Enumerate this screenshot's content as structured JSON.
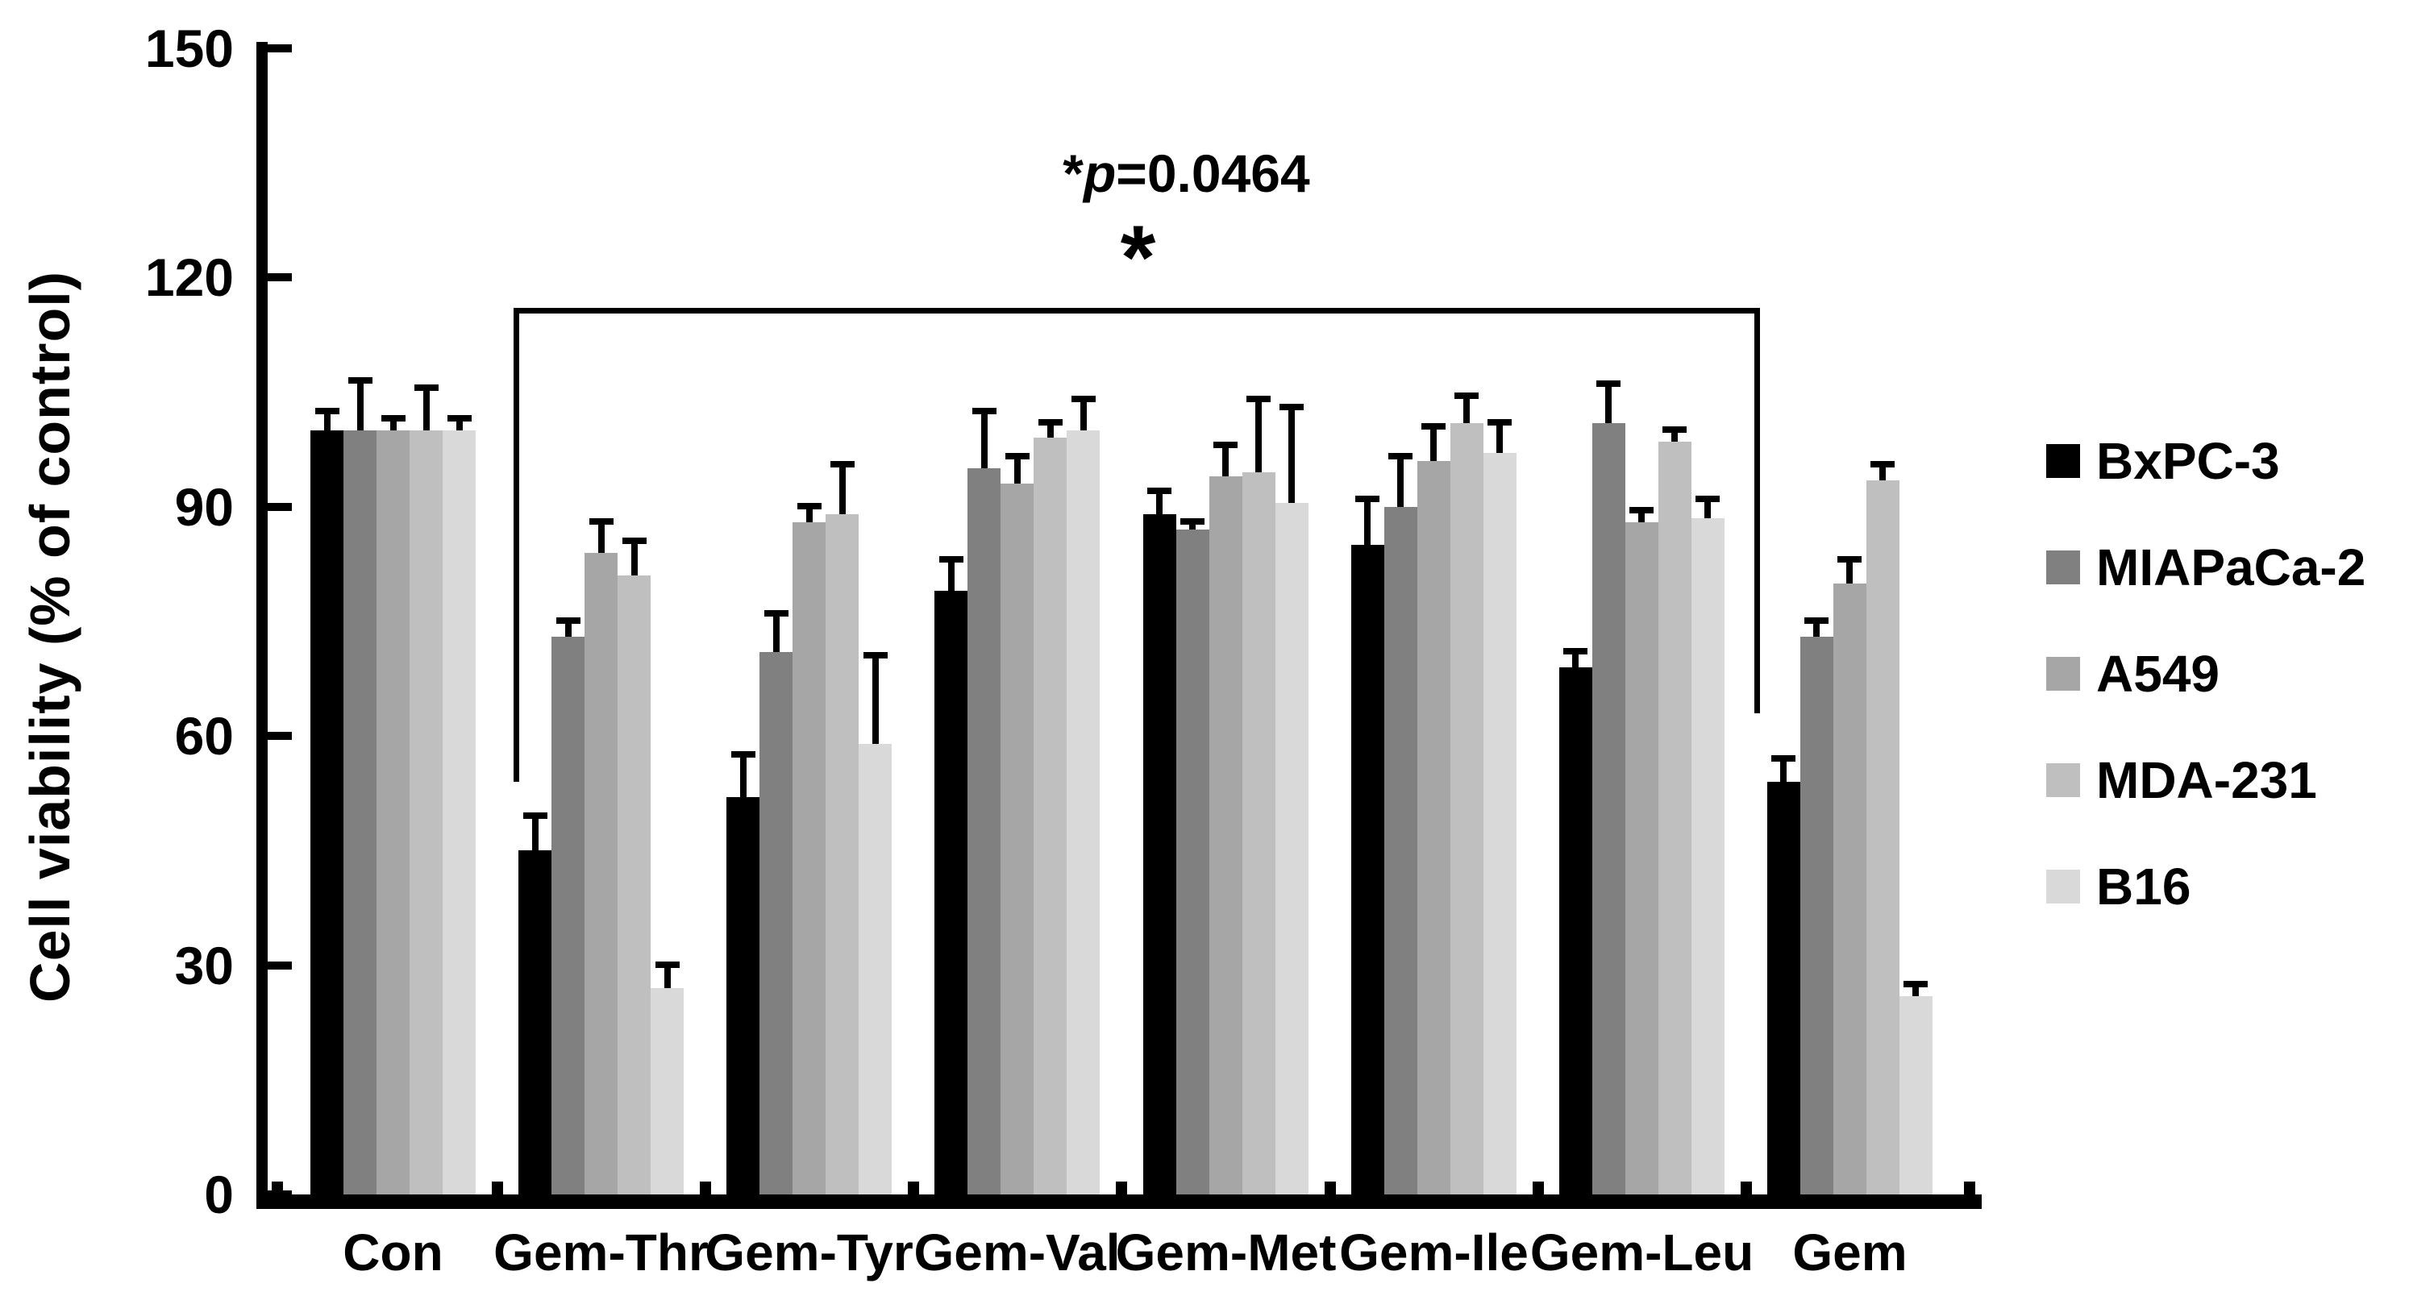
{
  "figure": {
    "background": "#ffffff"
  },
  "annotation": {
    "star": "*",
    "p_symbol": "p",
    "rest": "=0.0464"
  },
  "chart_data": {
    "type": "bar",
    "title": "",
    "xlabel": "",
    "ylabel": "Cell viability (% of control)",
    "ylim": [
      0,
      150
    ],
    "yticks": [
      0,
      30,
      60,
      90,
      120,
      150
    ],
    "grid": false,
    "legend_position": "right",
    "bar_color_scheme": "grayscale",
    "categories": [
      "Con",
      "Gem-Thr",
      "Gem-Tyr",
      "Gem-Val",
      "Gem-Met",
      "Gem-Ile",
      "Gem-Leu",
      "Gem"
    ],
    "series": [
      {
        "name": "BxPC-3",
        "color": "#000000",
        "values": [
          100,
          45,
          52,
          79,
          89,
          85,
          69,
          54
        ],
        "errors": [
          3,
          5,
          6,
          4.5,
          3.5,
          6.5,
          2.5,
          3.5
        ]
      },
      {
        "name": "MIAPaCa-2",
        "color": "#808080",
        "values": [
          100,
          73,
          71,
          95,
          87,
          90,
          101,
          73
        ],
        "errors": [
          7,
          2.5,
          5.5,
          8,
          1.5,
          7,
          5.5,
          2.5
        ]
      },
      {
        "name": "A549",
        "color": "#a6a6a6",
        "values": [
          100,
          84,
          88,
          93,
          94,
          96,
          88,
          80
        ],
        "errors": [
          2,
          4.5,
          2.5,
          4,
          4.5,
          5,
          2,
          3.5
        ]
      },
      {
        "name": "MDA-231",
        "color": "#bfbfbf",
        "values": [
          100,
          81,
          89,
          99,
          94.5,
          101,
          98.5,
          93.5
        ],
        "errors": [
          6,
          5,
          7,
          2.5,
          10,
          4,
          2,
          2.5
        ]
      },
      {
        "name": "B16",
        "color": "#d9d9d9",
        "values": [
          100,
          27,
          59,
          100,
          90.5,
          97,
          88.5,
          26
        ],
        "errors": [
          2,
          3.5,
          12,
          4.5,
          13,
          4.5,
          3,
          2
        ]
      }
    ],
    "significance": {
      "p_text": "*p=0.0464",
      "marker": "*",
      "from_category": "Gem-Thr",
      "to_category": "Gem",
      "bar_y_value": 116,
      "left_drop_to_value": 54,
      "right_drop_to_value": 63
    }
  }
}
